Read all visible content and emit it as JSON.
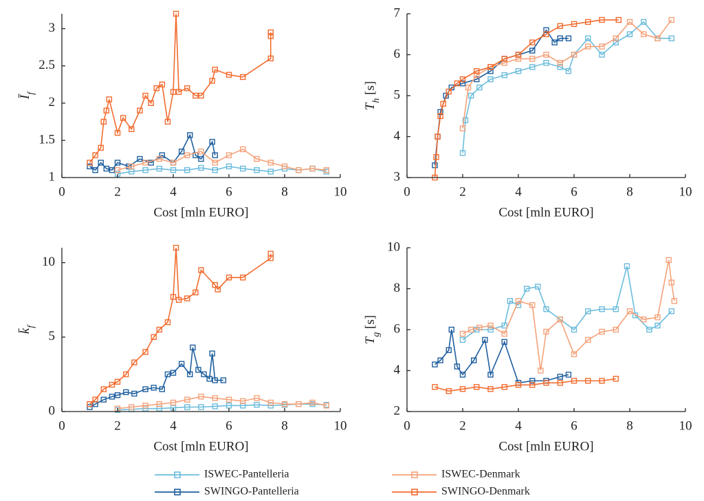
{
  "chart_data": [
    {
      "type": "line",
      "xlabel": "Cost [mln EURO]",
      "ylabel": [
        {
          "text": "Ī"
        },
        {
          "text": "f",
          "sub": true
        }
      ],
      "xlim": [
        0,
        10
      ],
      "ylim": [
        1,
        3.2
      ],
      "xticks": [
        0,
        2,
        4,
        6,
        8,
        10
      ],
      "yticks": [
        1,
        1.5,
        2,
        2.5,
        3
      ],
      "series": [
        {
          "name": "ISWEC-Pantelleria",
          "color": "#6bbcdc",
          "x": [
            2.0,
            2.5,
            3,
            3.5,
            4,
            4.5,
            5,
            5.5,
            6,
            6.5,
            7,
            7.5,
            8,
            8.5,
            9,
            9.5
          ],
          "y": [
            1.05,
            1.08,
            1.1,
            1.12,
            1.1,
            1.1,
            1.13,
            1.1,
            1.15,
            1.12,
            1.1,
            1.08,
            1.12,
            1.1,
            1.12,
            1.08
          ]
        },
        {
          "name": "SWINGO-Pantelleria",
          "color": "#1f5f9e",
          "x": [
            1.0,
            1.2,
            1.4,
            1.6,
            1.8,
            2.0,
            2.4,
            2.8,
            3.2,
            3.6,
            4.0,
            4.3,
            4.6,
            4.8,
            5.0,
            5.4,
            5.5
          ],
          "y": [
            1.15,
            1.1,
            1.2,
            1.12,
            1.1,
            1.2,
            1.15,
            1.25,
            1.2,
            1.3,
            1.2,
            1.35,
            1.57,
            1.3,
            1.25,
            1.48,
            1.3
          ]
        },
        {
          "name": "ISWEC-Denmark",
          "color": "#f4a27a",
          "x": [
            2,
            2.5,
            3,
            3.5,
            4,
            4.5,
            5,
            5.5,
            6,
            6.5,
            7,
            7.5,
            8,
            8.5,
            9,
            9.5
          ],
          "y": [
            1.1,
            1.15,
            1.2,
            1.25,
            1.2,
            1.3,
            1.35,
            1.2,
            1.3,
            1.38,
            1.25,
            1.2,
            1.15,
            1.1,
            1.12,
            1.1
          ]
        },
        {
          "name": "SWINGO-Denmark",
          "color": "#f26b2e",
          "x": [
            1.0,
            1.2,
            1.4,
            1.5,
            1.6,
            1.7,
            2.0,
            2.2,
            2.5,
            2.8,
            3.0,
            3.2,
            3.4,
            3.6,
            3.8,
            4.0,
            4.1,
            4.2,
            4.5,
            4.8,
            5.0,
            5.4,
            5.5,
            6.0,
            6.5,
            7.5,
            7.5,
            7.5
          ],
          "y": [
            1.2,
            1.3,
            1.4,
            1.75,
            1.9,
            2.05,
            1.6,
            1.8,
            1.65,
            1.9,
            2.1,
            2.0,
            2.2,
            2.25,
            1.75,
            2.15,
            3.2,
            2.15,
            2.2,
            2.1,
            2.1,
            2.3,
            2.45,
            2.38,
            2.35,
            2.6,
            2.9,
            2.95
          ]
        }
      ]
    },
    {
      "type": "line",
      "xlabel": "Cost [mln EURO]",
      "ylabel": [
        {
          "text": "T"
        },
        {
          "text": "h",
          "sub": true
        },
        {
          "text": " [s]"
        }
      ],
      "xlim": [
        0,
        10
      ],
      "ylim": [
        3,
        7
      ],
      "xticks": [
        0,
        2,
        4,
        6,
        8,
        10
      ],
      "yticks": [
        3,
        4,
        5,
        6,
        7
      ],
      "series": [
        {
          "name": "ISWEC-Pantelleria",
          "color": "#6bbcdc",
          "x": [
            2.0,
            2.1,
            2.3,
            2.6,
            3.0,
            3.5,
            4.0,
            4.5,
            5.0,
            5.5,
            5.8,
            6.0,
            6.5,
            7.0,
            7.5,
            8.0,
            8.5,
            9.0,
            9.5
          ],
          "y": [
            3.6,
            4.4,
            5.0,
            5.2,
            5.4,
            5.5,
            5.6,
            5.7,
            5.8,
            5.7,
            5.6,
            6.0,
            6.4,
            6.0,
            6.3,
            6.5,
            6.8,
            6.4,
            6.4
          ]
        },
        {
          "name": "SWINGO-Pantelleria",
          "color": "#1f5f9e",
          "x": [
            1.0,
            1.1,
            1.2,
            1.4,
            1.6,
            2.0,
            2.5,
            3.0,
            3.5,
            4.0,
            4.5,
            5.0,
            5.3,
            5.5,
            5.8
          ],
          "y": [
            3.3,
            4.0,
            4.6,
            5.0,
            5.2,
            5.3,
            5.4,
            5.6,
            5.9,
            6.0,
            6.1,
            6.6,
            6.3,
            6.4,
            6.4
          ]
        },
        {
          "name": "ISWEC-Denmark",
          "color": "#f4a27a",
          "x": [
            2.0,
            2.2,
            2.5,
            3.0,
            3.5,
            4.0,
            4.5,
            5.0,
            5.5,
            6.0,
            6.5,
            7.0,
            7.5,
            8.0,
            8.5,
            9.0,
            9.5
          ],
          "y": [
            4.2,
            5.2,
            5.5,
            5.7,
            5.8,
            5.9,
            5.9,
            6.0,
            5.8,
            6.0,
            6.2,
            6.2,
            6.4,
            6.8,
            6.5,
            6.4,
            6.85
          ]
        },
        {
          "name": "SWINGO-Denmark",
          "color": "#f26b2e",
          "x": [
            1.0,
            1.05,
            1.1,
            1.2,
            1.3,
            1.5,
            1.8,
            2.0,
            2.5,
            3.0,
            3.5,
            4.0,
            4.5,
            5.0,
            5.5,
            6.0,
            6.5,
            7.0,
            7.6
          ],
          "y": [
            3.0,
            3.5,
            4.0,
            4.5,
            4.8,
            5.1,
            5.3,
            5.4,
            5.6,
            5.7,
            5.9,
            6.0,
            6.3,
            6.5,
            6.7,
            6.75,
            6.8,
            6.85,
            6.85
          ]
        }
      ]
    },
    {
      "type": "line",
      "xlabel": "Cost [mln EURO]",
      "ylabel": [
        {
          "text": "k̄"
        },
        {
          "text": "f",
          "sub": true
        }
      ],
      "xlim": [
        0,
        10
      ],
      "ylim": [
        0,
        11
      ],
      "xticks": [
        0,
        2,
        4,
        6,
        8,
        10
      ],
      "yticks": [
        0,
        5,
        10
      ],
      "series": [
        {
          "name": "ISWEC-Pantelleria",
          "color": "#6bbcdc",
          "x": [
            2.0,
            2.5,
            3,
            3.5,
            4,
            4.5,
            5,
            5.5,
            6,
            6.5,
            7,
            7.5,
            8,
            8.5,
            9,
            9.5
          ],
          "y": [
            0.1,
            0.15,
            0.2,
            0.2,
            0.25,
            0.3,
            0.3,
            0.35,
            0.4,
            0.4,
            0.45,
            0.4,
            0.45,
            0.5,
            0.5,
            0.45
          ]
        },
        {
          "name": "SWINGO-Pantelleria",
          "color": "#1f5f9e",
          "x": [
            1.0,
            1.2,
            1.5,
            1.8,
            2.0,
            2.3,
            2.6,
            3.0,
            3.3,
            3.6,
            3.8,
            4.0,
            4.3,
            4.6,
            4.7,
            4.9,
            5.1,
            5.3,
            5.4,
            5.5,
            5.8
          ],
          "y": [
            0.3,
            0.5,
            0.8,
            1.0,
            1.1,
            1.3,
            1.2,
            1.5,
            1.6,
            1.5,
            2.5,
            2.6,
            3.2,
            2.5,
            4.3,
            2.8,
            2.5,
            2.2,
            3.9,
            2.1,
            2.1
          ]
        },
        {
          "name": "ISWEC-Denmark",
          "color": "#f4a27a",
          "x": [
            2,
            2.5,
            3,
            3.5,
            4,
            4.5,
            5,
            5.5,
            6,
            6.5,
            7,
            7.5,
            8,
            8.5,
            9,
            9.5
          ],
          "y": [
            0.2,
            0.3,
            0.4,
            0.5,
            0.6,
            0.8,
            1.0,
            0.9,
            0.8,
            0.7,
            0.9,
            0.6,
            0.5,
            0.5,
            0.6,
            0.4
          ]
        },
        {
          "name": "SWINGO-Denmark",
          "color": "#f26b2e",
          "x": [
            1.0,
            1.2,
            1.5,
            1.8,
            2.0,
            2.3,
            2.6,
            3.0,
            3.3,
            3.5,
            3.8,
            4.0,
            4.1,
            4.2,
            4.5,
            4.8,
            5.0,
            5.5,
            5.6,
            6.0,
            6.5,
            7.5,
            7.5
          ],
          "y": [
            0.5,
            0.8,
            1.5,
            1.8,
            2.0,
            2.5,
            3.3,
            4.0,
            5.0,
            5.5,
            6.0,
            7.7,
            11.0,
            7.5,
            7.6,
            8.0,
            9.5,
            8.5,
            8.2,
            9.0,
            9.0,
            10.3,
            10.6
          ]
        }
      ]
    },
    {
      "type": "line",
      "xlabel": "Cost [mln EURO]",
      "ylabel": [
        {
          "text": "T"
        },
        {
          "text": "g",
          "sub": true
        },
        {
          "text": " [s]"
        }
      ],
      "xlim": [
        0,
        10
      ],
      "ylim": [
        2,
        10
      ],
      "xticks": [
        0,
        2,
        4,
        6,
        8,
        10
      ],
      "yticks": [
        2,
        4,
        6,
        8,
        10
      ],
      "series": [
        {
          "name": "ISWEC-Pantelleria",
          "color": "#6bbcdc",
          "x": [
            2.0,
            2.5,
            3,
            3.5,
            3.7,
            4,
            4.3,
            4.7,
            5,
            5.5,
            6,
            6.5,
            7,
            7.5,
            7.9,
            8.2,
            8.7,
            9,
            9.5
          ],
          "y": [
            5.5,
            6.0,
            6.0,
            6.2,
            7.4,
            7.2,
            8.0,
            8.1,
            7.0,
            6.5,
            6.0,
            6.9,
            7.0,
            7.0,
            9.1,
            6.7,
            6.0,
            6.2,
            6.9
          ]
        },
        {
          "name": "SWINGO-Pantelleria",
          "color": "#1f5f9e",
          "x": [
            1,
            1.2,
            1.5,
            1.6,
            1.8,
            2.0,
            2.4,
            2.8,
            3.0,
            3.5,
            4,
            4.5,
            5,
            5.5,
            5.8
          ],
          "y": [
            4.3,
            4.5,
            5.0,
            6.0,
            4.2,
            3.8,
            4.5,
            5.5,
            3.8,
            5.4,
            3.4,
            3.5,
            3.5,
            3.7,
            3.8
          ]
        },
        {
          "name": "ISWEC-Denmark",
          "color": "#f4a27a",
          "x": [
            2,
            2.3,
            2.6,
            3,
            3.5,
            4,
            4.5,
            4.8,
            5,
            5.5,
            6,
            6.5,
            7,
            7.5,
            8,
            8.5,
            9,
            9.4,
            9.5,
            9.6
          ],
          "y": [
            5.8,
            6.0,
            6.1,
            6.2,
            5.8,
            7.4,
            7.2,
            4.0,
            5.9,
            6.5,
            4.8,
            5.5,
            5.9,
            6.0,
            6.9,
            6.5,
            6.6,
            9.4,
            8.3,
            7.4
          ]
        },
        {
          "name": "SWINGO-Denmark",
          "color": "#f26b2e",
          "x": [
            1,
            1.5,
            2,
            2.5,
            3,
            3.5,
            4,
            4.5,
            5,
            5.5,
            6,
            6.5,
            7,
            7.5
          ],
          "y": [
            3.2,
            3.0,
            3.1,
            3.2,
            3.1,
            3.2,
            3.3,
            3.3,
            3.4,
            3.4,
            3.5,
            3.5,
            3.5,
            3.6
          ]
        }
      ]
    }
  ]
}
